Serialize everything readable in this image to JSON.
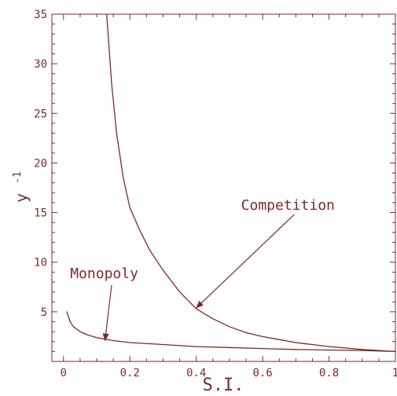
{
  "colors": {
    "accent": "#7b2a2a",
    "background": "#ffffff"
  },
  "chart_data": {
    "type": "line",
    "title": "",
    "xlabel": "S.I.",
    "ylabel": "y",
    "ylabel_superscript": "-1",
    "xlim": [
      -0.035,
      1.0
    ],
    "ylim": [
      0,
      35
    ],
    "xticks": [
      0,
      0.2,
      0.4,
      0.6,
      0.8,
      1
    ],
    "xtick_labels": [
      "0",
      "0.2",
      "0.4",
      "0.6",
      "0.8",
      "1"
    ],
    "yticks": [
      5,
      10,
      15,
      20,
      25,
      30,
      35
    ],
    "ytick_labels": [
      "5",
      "10",
      "15",
      "20",
      "25",
      "30",
      "35"
    ],
    "grid": false,
    "legend": "none",
    "series": [
      {
        "name": "Competition",
        "x": [
          0.13,
          0.145,
          0.16,
          0.18,
          0.2,
          0.23,
          0.26,
          0.3,
          0.35,
          0.4,
          0.45,
          0.5,
          0.55,
          0.6,
          0.65,
          0.7,
          0.8,
          0.9,
          1.0
        ],
        "y": [
          35,
          28,
          23,
          18.5,
          15.5,
          13.2,
          11.2,
          9.2,
          7.0,
          5.3,
          4.3,
          3.5,
          2.9,
          2.5,
          2.2,
          1.9,
          1.5,
          1.2,
          1.0
        ]
      },
      {
        "name": "Monopoly",
        "x": [
          0.01,
          0.02,
          0.03,
          0.05,
          0.07,
          0.1,
          0.15,
          0.2,
          0.3,
          0.4,
          0.5,
          0.6,
          0.7,
          0.8,
          0.9,
          1.0
        ],
        "y": [
          5.0,
          4.0,
          3.5,
          3.0,
          2.7,
          2.4,
          2.1,
          1.9,
          1.7,
          1.5,
          1.4,
          1.3,
          1.2,
          1.15,
          1.1,
          1.0
        ]
      }
    ],
    "annotations": [
      {
        "text": "Competition",
        "label_x": 0.535,
        "label_y": 15.3,
        "arrow_from": [
          0.695,
          14.8
        ],
        "arrow_to": [
          0.4,
          5.4
        ]
      },
      {
        "text": "Monopoly",
        "label_x": 0.02,
        "label_y": 8.4,
        "arrow_from": [
          0.145,
          7.7
        ],
        "arrow_to": [
          0.125,
          2.1
        ]
      }
    ]
  }
}
